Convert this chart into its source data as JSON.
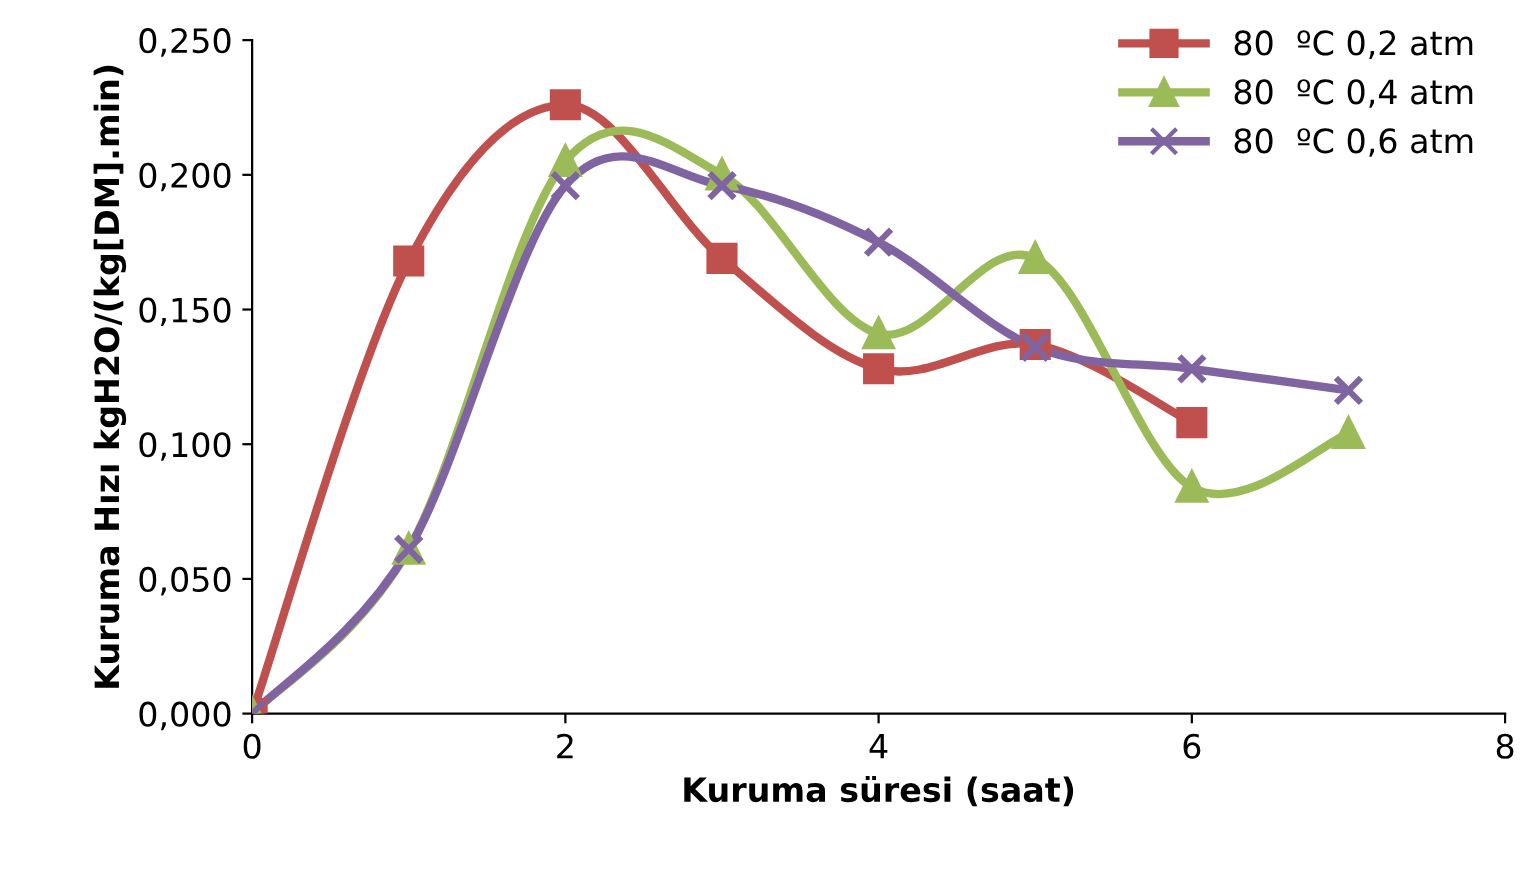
{
  "chart_data": {
    "type": "line",
    "xlabel": "Kuruma süresi (saat)",
    "ylabel": "Kuruma Hızı kgH2O/(kg[DM].min)",
    "x": [
      0,
      1,
      2,
      3,
      4,
      5,
      6,
      7
    ],
    "series": [
      {
        "name": "80  ºC 0,2 atm",
        "color": "#c0504d",
        "marker": "square",
        "values": [
          0,
          0.168,
          0.226,
          0.169,
          0.128,
          0.137,
          0.108,
          null
        ]
      },
      {
        "name": "80  ºC 0,4 atm",
        "color": "#9bbb59",
        "marker": "triangle",
        "values": [
          0,
          0.061,
          0.205,
          0.2,
          0.141,
          0.169,
          0.084,
          0.104
        ]
      },
      {
        "name": "80  ºC 0,6 atm",
        "color": "#8064a2",
        "marker": "cross",
        "values": [
          0,
          0.061,
          0.196,
          0.196,
          0.175,
          0.136,
          0.128,
          0.12
        ]
      }
    ],
    "xlim": [
      0,
      8
    ],
    "xticks": [
      0,
      2,
      4,
      6,
      8
    ],
    "ylim": [
      0,
      0.25
    ],
    "yticks": [
      {
        "value": 0,
        "label": "0,000"
      },
      {
        "value": 0.05,
        "label": "0,050"
      },
      {
        "value": 0.1,
        "label": "0,100"
      },
      {
        "value": 0.15,
        "label": "0,150"
      },
      {
        "value": 0.2,
        "label": "0,200"
      },
      {
        "value": 0.25,
        "label": "0,250"
      }
    ],
    "grid": false,
    "legend": "top right",
    "line_style": "solid"
  }
}
